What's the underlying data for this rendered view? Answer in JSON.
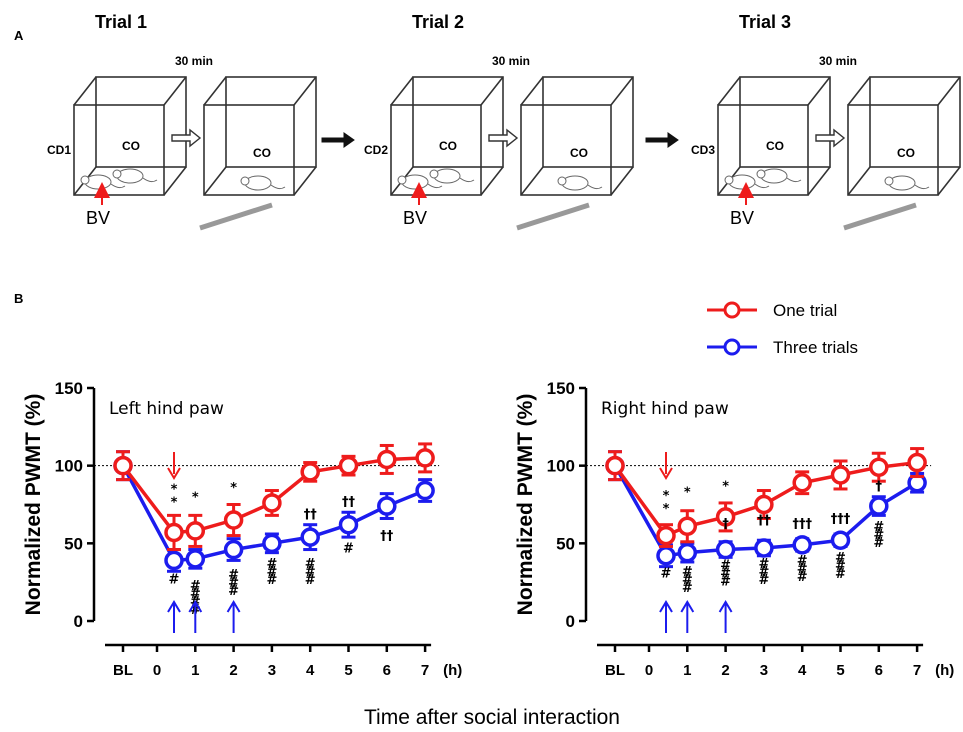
{
  "panel_a": {
    "label": "A",
    "trials": [
      {
        "title": "Trial 1",
        "interval": "30 min",
        "intruder": "CD1",
        "resident": "CO",
        "resident2": "CO",
        "stimulus": "BV"
      },
      {
        "title": "Trial 2",
        "interval": "30 min",
        "intruder": "CD2",
        "resident": "CO",
        "resident2": "CO",
        "stimulus": "BV"
      },
      {
        "title": "Trial 3",
        "interval": "30 min",
        "intruder": "CD3",
        "resident": "CO",
        "resident2": "CO",
        "stimulus": "BV"
      }
    ]
  },
  "panel_b": {
    "label": "B",
    "legend": [
      {
        "label": "One trial",
        "color": "#ee1c1c"
      },
      {
        "label": "Three trials",
        "color": "#1c1cee"
      }
    ],
    "x_common_label": "Time after social interaction",
    "x_unit": "(h)"
  },
  "chart_data": [
    {
      "type": "line",
      "title": "Left hind paw",
      "ylabel": "Normalized PWMT (%)",
      "xlabel": "Time after social interaction",
      "ylim": [
        0,
        150
      ],
      "yticks": [
        0,
        50,
        100,
        150
      ],
      "reference_line": 100,
      "categories": [
        "BL",
        "0.5",
        "1",
        "2",
        "3",
        "4",
        "5",
        "6",
        "7"
      ],
      "xtick_labels": [
        "BL",
        "0",
        "1",
        "2",
        "3",
        "4",
        "5",
        "6",
        "7"
      ],
      "series": [
        {
          "name": "One trial",
          "color": "#ee1c1c",
          "values": [
            100,
            57,
            58,
            65,
            76,
            96,
            100,
            104,
            105
          ],
          "errors": [
            9,
            11,
            10,
            10,
            8,
            6,
            6,
            9,
            9
          ]
        },
        {
          "name": "Three trials",
          "color": "#1c1cee",
          "values": [
            100,
            39,
            40,
            46,
            50,
            54,
            62,
            74,
            84
          ],
          "errors": [
            9,
            7,
            6,
            7,
            6,
            8,
            8,
            8,
            7
          ]
        }
      ],
      "annotations": [
        {
          "label": "**",
          "x": "0.5",
          "y": 82
        },
        {
          "label": "*",
          "x": "1",
          "y": 77
        },
        {
          "label": "*",
          "x": "2",
          "y": 83
        },
        {
          "label": "††",
          "x": "4",
          "y": 66
        },
        {
          "label": "††",
          "x": "5",
          "y": 74
        },
        {
          "label": "††",
          "x": "6",
          "y": 52
        },
        {
          "label": "#",
          "x": "0.5",
          "y": 24
        },
        {
          "label": "####",
          "x": "1",
          "y": 20
        },
        {
          "label": "###",
          "x": "2",
          "y": 27
        },
        {
          "label": "###",
          "x": "3",
          "y": 34
        },
        {
          "label": "###",
          "x": "4",
          "y": 34
        },
        {
          "label": "#",
          "x": "5",
          "y": 44
        }
      ],
      "arrows": {
        "red": [
          "0.5"
        ],
        "blue": [
          "0.5",
          "1",
          "2"
        ]
      }
    },
    {
      "type": "line",
      "title": "Right hind paw",
      "ylabel": "Normalized PWMT (%)",
      "xlabel": "Time after social interaction",
      "ylim": [
        0,
        150
      ],
      "yticks": [
        0,
        50,
        100,
        150
      ],
      "reference_line": 100,
      "categories": [
        "BL",
        "0.5",
        "1",
        "2",
        "3",
        "4",
        "5",
        "6",
        "7"
      ],
      "xtick_labels": [
        "BL",
        "0",
        "1",
        "2",
        "3",
        "4",
        "5",
        "6",
        "7"
      ],
      "series": [
        {
          "name": "One trial",
          "color": "#ee1c1c",
          "values": [
            100,
            55,
            61,
            67,
            75,
            89,
            94,
            99,
            102
          ],
          "errors": [
            9,
            7,
            10,
            9,
            9,
            7,
            9,
            9,
            9
          ]
        },
        {
          "name": "Three trials",
          "color": "#1c1cee",
          "values": [
            100,
            42,
            44,
            46,
            47,
            49,
            52,
            74,
            89
          ],
          "errors": [
            9,
            7,
            6,
            5,
            5,
            4,
            4,
            6,
            6
          ]
        }
      ],
      "annotations": [
        {
          "label": "**",
          "x": "0.5",
          "y": 78
        },
        {
          "label": "*",
          "x": "1",
          "y": 80
        },
        {
          "label": "*",
          "x": "2",
          "y": 84
        },
        {
          "label": "†",
          "x": "2",
          "y": 60
        },
        {
          "label": "††",
          "x": "3",
          "y": 62
        },
        {
          "label": "†††",
          "x": "4",
          "y": 60
        },
        {
          "label": "†††",
          "x": "5",
          "y": 63
        },
        {
          "label": "†",
          "x": "6",
          "y": 84
        },
        {
          "label": "#",
          "x": "0.5",
          "y": 28
        },
        {
          "label": "###",
          "x": "1",
          "y": 29
        },
        {
          "label": "###",
          "x": "2",
          "y": 33
        },
        {
          "label": "###",
          "x": "3",
          "y": 34
        },
        {
          "label": "###",
          "x": "4",
          "y": 36
        },
        {
          "label": "###",
          "x": "5",
          "y": 38
        },
        {
          "label": "###",
          "x": "6",
          "y": 58
        }
      ],
      "arrows": {
        "red": [
          "0.5"
        ],
        "blue": [
          "0.5",
          "1",
          "2"
        ]
      }
    }
  ]
}
